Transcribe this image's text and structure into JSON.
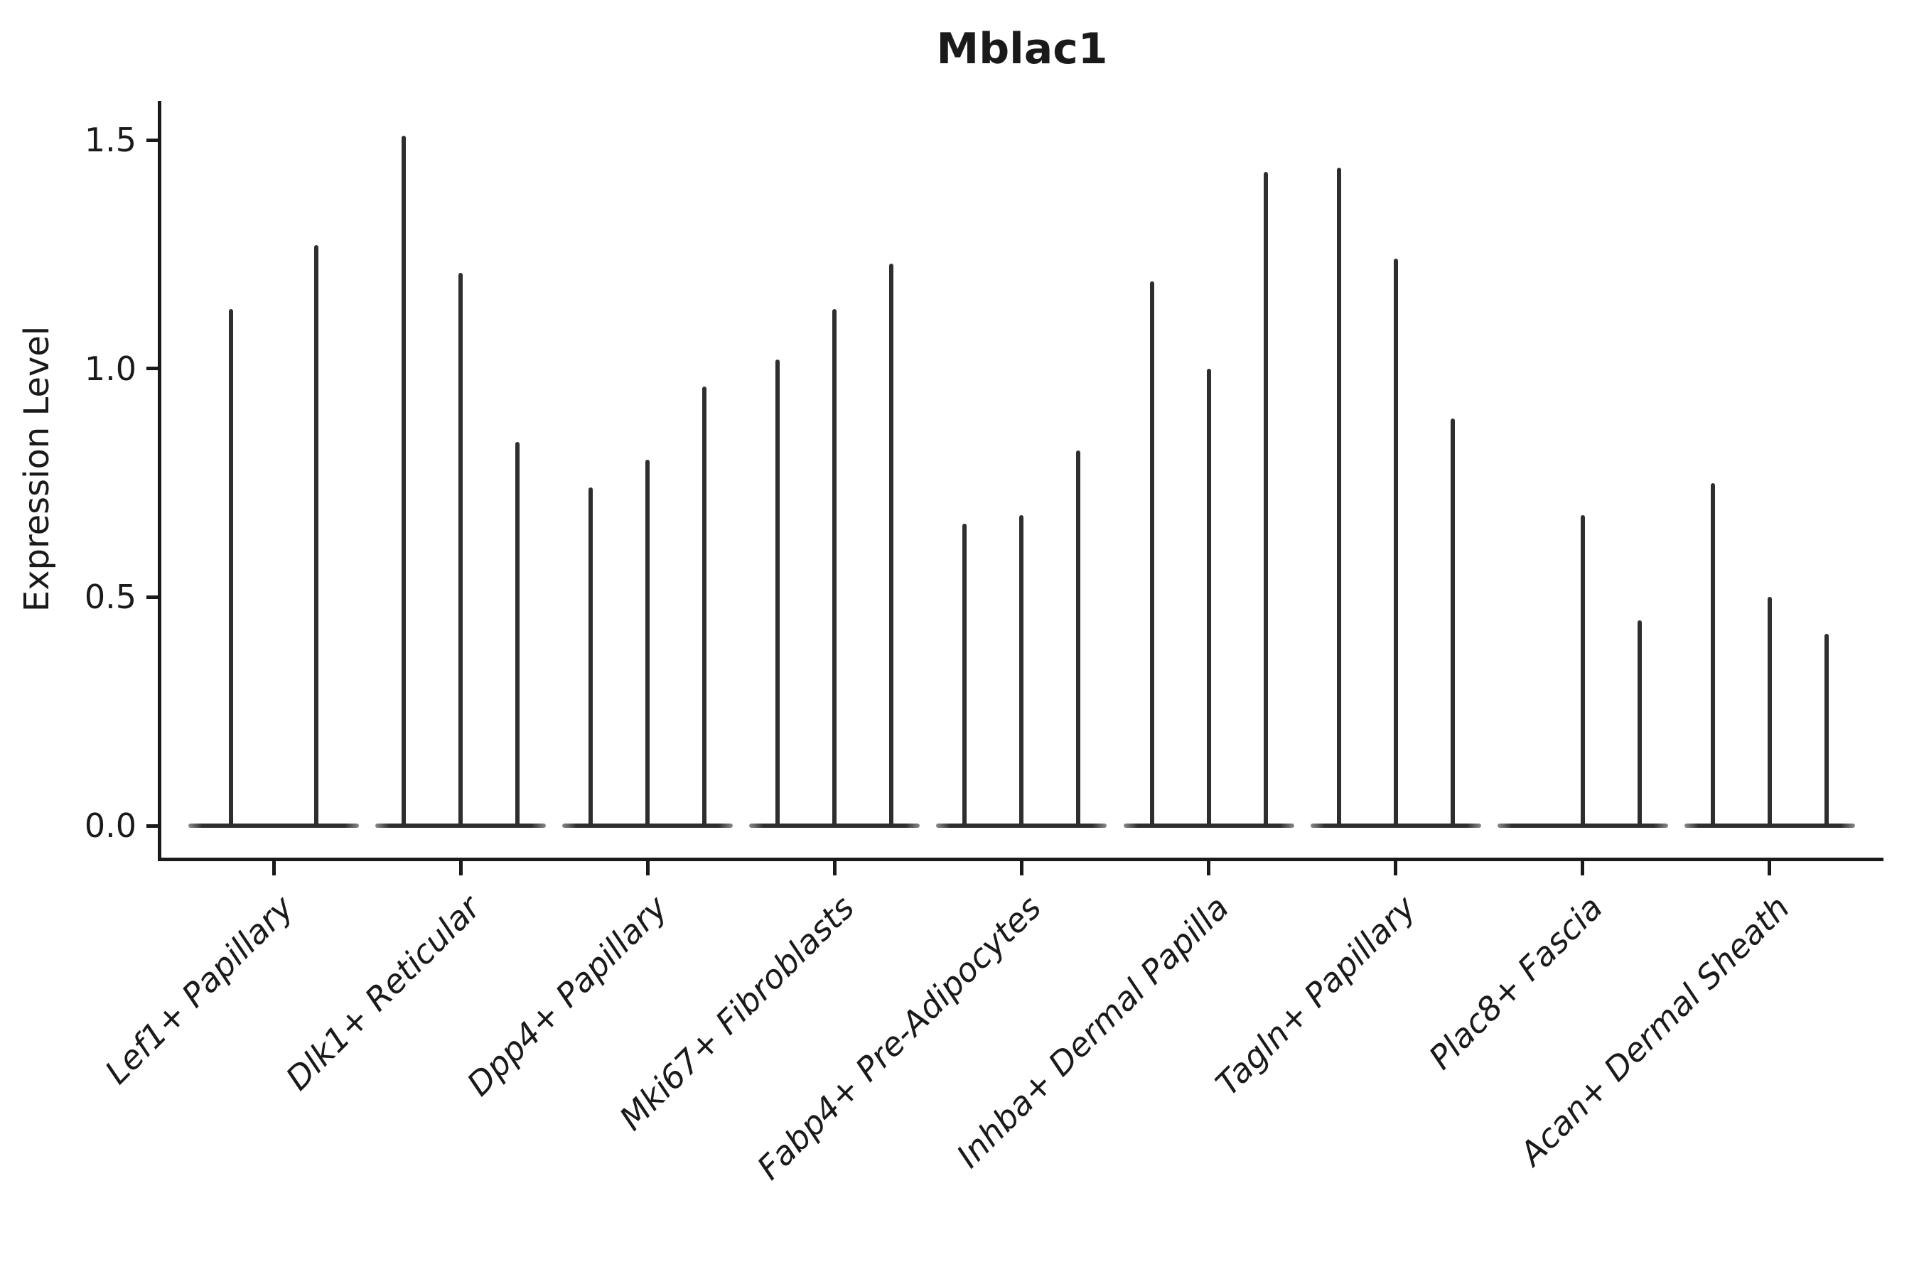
{
  "figure": {
    "title": "Mblac1",
    "ylabel": "Expression Level"
  },
  "chart_data": {
    "type": "violin",
    "title": "Mblac1",
    "xlabel": "",
    "ylabel": "Expression Level",
    "ylim": [
      -0.07,
      1.585
    ],
    "yticks": [
      "0.0",
      "0.5",
      "1.0",
      "1.5"
    ],
    "ytick_values": [
      0.0,
      0.5,
      1.0,
      1.5
    ],
    "grid": false,
    "legend_position": "none",
    "categories": [
      "Lef1+ Papillary",
      "Dlk1+ Reticular",
      "Dpp4+ Papillary",
      "Mki67+ Fibroblasts",
      "Fabp4+ Pre-Adipocytes",
      "Inhba+ Dermal Papilla",
      "Tagln+ Papillary",
      "Plac8+ Fascia",
      "Acan+ Dermal Sheath"
    ],
    "groups": [
      {
        "category": "Lef1+ Papillary",
        "violin_maxima": [
          1.13,
          1.27
        ]
      },
      {
        "category": "Dlk1+ Reticular",
        "violin_maxima": [
          1.51,
          1.21,
          0.84
        ]
      },
      {
        "category": "Dpp4+ Papillary",
        "violin_maxima": [
          0.74,
          0.8,
          0.96
        ]
      },
      {
        "category": "Mki67+ Fibroblasts",
        "violin_maxima": [
          1.02,
          1.13,
          1.23
        ]
      },
      {
        "category": "Fabp4+ Pre-Adipocytes",
        "violin_maxima": [
          0.66,
          0.68,
          0.82
        ]
      },
      {
        "category": "Inhba+ Dermal Papilla",
        "violin_maxima": [
          1.19,
          1.0,
          1.43
        ]
      },
      {
        "category": "Tagln+ Papillary",
        "violin_maxima": [
          1.44,
          1.24,
          0.89
        ]
      },
      {
        "category": "Plac8+ Fascia",
        "violin_maxima": [
          0.0,
          0.68,
          0.45
        ]
      },
      {
        "category": "Acan+ Dermal Sheath",
        "violin_maxima": [
          0.75,
          0.5,
          0.42
        ]
      }
    ],
    "colors": {
      "ink": "#1a1a1a",
      "violin": "#2e2e2e",
      "violin_taper": "#8a8a8a",
      "background": "#ffffff"
    }
  }
}
